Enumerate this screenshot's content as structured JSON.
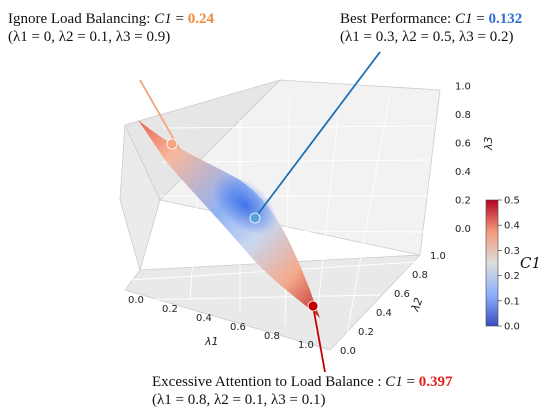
{
  "chart_data": {
    "type": "surface3d",
    "title": "",
    "xlabel": "λ1",
    "ylabel": "λ2",
    "zlabel": "λ3",
    "xlim": [
      0.0,
      1.0
    ],
    "ylim": [
      0.0,
      1.0
    ],
    "zlim": [
      0.0,
      1.0
    ],
    "x_ticks": [
      "0.0",
      "0.2",
      "0.4",
      "0.6",
      "0.8",
      "1.0"
    ],
    "y_ticks": [
      "0.0",
      "0.2",
      "0.4",
      "0.6",
      "0.8",
      "1.0"
    ],
    "z_ticks": [
      "0.0",
      "0.2",
      "0.4",
      "0.6",
      "0.8",
      "1.0"
    ],
    "grid": true,
    "surface": "lambda1 + lambda2 + lambda3 = 1, colored by C1",
    "colorbar": {
      "label": "C1",
      "min": 0.0,
      "max": 0.5,
      "ticks": [
        "0.0",
        "0.1",
        "0.2",
        "0.3",
        "0.4",
        "0.5"
      ],
      "colors": [
        "#3b4cc0",
        "#dddddd",
        "#b40426"
      ]
    },
    "points": [
      {
        "id": "ignore",
        "label": "Ignore Load Balancing:",
        "metric": "C1",
        "value": "0.24",
        "params": "(λ1 = 0, λ2 = 0.1, λ3 = 0.9)",
        "lambda": [
          0.0,
          0.1,
          0.9
        ],
        "color": "#f4a582",
        "value_color": "#f08a3c"
      },
      {
        "id": "best",
        "label": "Best Performance:",
        "metric": "C1",
        "value": "0.132",
        "params": "(λ1 = 0.3, λ2 = 0.5, λ3 = 0.2)",
        "lambda": [
          0.3,
          0.5,
          0.2
        ],
        "color": "#5aa0dc",
        "value_color": "#2e6fd1",
        "line_color": "#1f6fb4"
      },
      {
        "id": "excess",
        "label": "Excessive Attention to Load Balance :",
        "metric": "C1",
        "value": "0.397",
        "params": "(λ1 = 0.8, λ2 = 0.1, λ3 = 0.1)",
        "lambda": [
          0.8,
          0.1,
          0.1
        ],
        "color": "#c00000",
        "value_color": "#e02020"
      }
    ]
  }
}
